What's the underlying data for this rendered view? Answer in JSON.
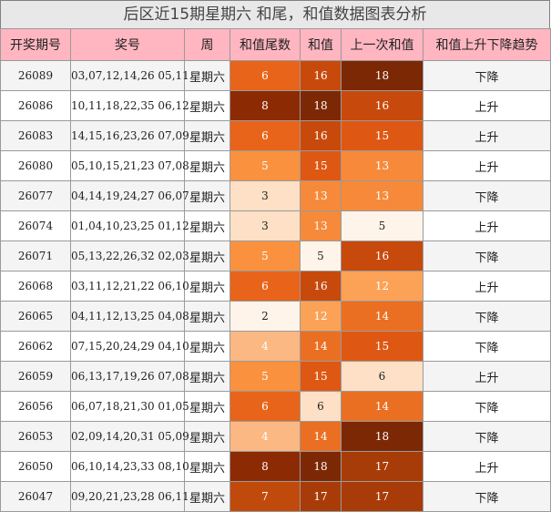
{
  "title": "后区近15期星期六 和尾，和值数据图表分析",
  "headers": [
    "开奖期号",
    "奖号",
    "周",
    "和值尾数",
    "和值",
    "上一次和值",
    "和值上升下降趋势"
  ],
  "rows": [
    {
      "issue": "26089",
      "numbers": "03,07,12,14,26 05,11",
      "weekday": "星期六",
      "tail": "6",
      "sum": "16",
      "prev": "18",
      "trend": "下降"
    },
    {
      "issue": "26086",
      "numbers": "10,11,18,22,35 06,12",
      "weekday": "星期六",
      "tail": "8",
      "sum": "18",
      "prev": "16",
      "trend": "上升"
    },
    {
      "issue": "26083",
      "numbers": "14,15,16,23,26 07,09",
      "weekday": "星期六",
      "tail": "6",
      "sum": "16",
      "prev": "15",
      "trend": "上升"
    },
    {
      "issue": "26080",
      "numbers": "05,10,15,21,23 07,08",
      "weekday": "星期六",
      "tail": "5",
      "sum": "15",
      "prev": "13",
      "trend": "上升"
    },
    {
      "issue": "26077",
      "numbers": "04,14,19,24,27 06,07",
      "weekday": "星期六",
      "tail": "3",
      "sum": "13",
      "prev": "13",
      "trend": "下降"
    },
    {
      "issue": "26074",
      "numbers": "01,04,10,23,25 01,12",
      "weekday": "星期六",
      "tail": "3",
      "sum": "13",
      "prev": "5",
      "trend": "上升"
    },
    {
      "issue": "26071",
      "numbers": "05,13,22,26,32 02,03",
      "weekday": "星期六",
      "tail": "5",
      "sum": "5",
      "prev": "16",
      "trend": "下降"
    },
    {
      "issue": "26068",
      "numbers": "03,11,12,21,22 06,10",
      "weekday": "星期六",
      "tail": "6",
      "sum": "16",
      "prev": "12",
      "trend": "上升"
    },
    {
      "issue": "26065",
      "numbers": "04,11,12,13,25 04,08",
      "weekday": "星期六",
      "tail": "2",
      "sum": "12",
      "prev": "14",
      "trend": "下降"
    },
    {
      "issue": "26062",
      "numbers": "07,15,20,24,29 04,10",
      "weekday": "星期六",
      "tail": "4",
      "sum": "14",
      "prev": "15",
      "trend": "下降"
    },
    {
      "issue": "26059",
      "numbers": "06,13,17,19,26 07,08",
      "weekday": "星期六",
      "tail": "5",
      "sum": "15",
      "prev": "6",
      "trend": "上升"
    },
    {
      "issue": "26056",
      "numbers": "06,07,18,21,30 01,05",
      "weekday": "星期六",
      "tail": "6",
      "sum": "6",
      "prev": "14",
      "trend": "下降"
    },
    {
      "issue": "26053",
      "numbers": "02,09,14,20,31 05,09",
      "weekday": "星期六",
      "tail": "4",
      "sum": "14",
      "prev": "18",
      "trend": "下降"
    },
    {
      "issue": "26050",
      "numbers": "06,10,14,23,33 08,10",
      "weekday": "星期六",
      "tail": "8",
      "sum": "18",
      "prev": "17",
      "trend": "上升"
    },
    {
      "issue": "26047",
      "numbers": "09,20,21,23,28 06,11",
      "weekday": "星期六",
      "tail": "7",
      "sum": "17",
      "prev": "17",
      "trend": "下降"
    }
  ],
  "colors": {
    "header_bg": "#ffb6c1",
    "title_bg": "#e8e8e8",
    "tail_scale": {
      "2": "#fff4ea",
      "3": "#fde0c5",
      "4": "#fbb882",
      "5": "#f9913f",
      "6": "#e8641a",
      "7": "#c04a0c",
      "8": "#8c2a04"
    },
    "sum_scale": {
      "5": "#fff4ea",
      "6": "#fde0c5",
      "12": "#fba257",
      "13": "#f68a3a",
      "14": "#ea6f22",
      "15": "#de5814",
      "16": "#c74a0c",
      "17": "#a83c08",
      "18": "#7c2804"
    }
  }
}
